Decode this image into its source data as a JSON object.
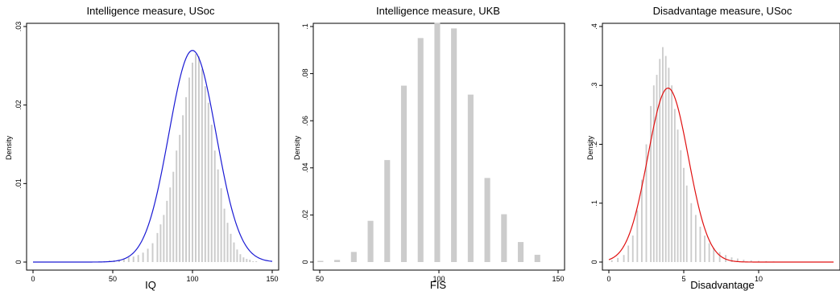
{
  "chart_data": [
    {
      "type": "bar",
      "title": "Intelligence measure, USoc",
      "xlabel": "IQ",
      "ylabel": "Density",
      "xlim": [
        0,
        150
      ],
      "ylim": [
        0,
        0.03
      ],
      "xticks": [
        {
          "v": 0,
          "label": "0"
        },
        {
          "v": 50,
          "label": "50"
        },
        {
          "v": 100,
          "label": "100"
        },
        {
          "v": 150,
          "label": "150"
        }
      ],
      "yticks": [
        {
          "v": 0,
          "label": "0"
        },
        {
          "v": 0.01,
          "label": ".01"
        },
        {
          "v": 0.02,
          "label": ".02"
        },
        {
          "v": 0.03,
          "label": ".03"
        }
      ],
      "bin_width": 1,
      "histogram": {
        "x": [
          45,
          48,
          51,
          54,
          57,
          60,
          63,
          66,
          69,
          72,
          75,
          78,
          80,
          82,
          84,
          86,
          88,
          90,
          92,
          94,
          96,
          98,
          100,
          102,
          104,
          106,
          108,
          110,
          112,
          114,
          116,
          118,
          120,
          122,
          124,
          126,
          128,
          130,
          132,
          134,
          136,
          138,
          140
        ],
        "y": [
          0.0001,
          0.0002,
          0.0002,
          0.0003,
          0.0004,
          0.0006,
          0.0007,
          0.0009,
          0.0012,
          0.0017,
          0.0024,
          0.0037,
          0.0048,
          0.006,
          0.0078,
          0.0095,
          0.0115,
          0.0142,
          0.0162,
          0.0187,
          0.021,
          0.0235,
          0.0254,
          0.0265,
          0.0262,
          0.0246,
          0.0224,
          0.0203,
          0.0175,
          0.0142,
          0.0118,
          0.0094,
          0.0068,
          0.005,
          0.0036,
          0.0025,
          0.0016,
          0.001,
          0.0006,
          0.0004,
          0.0003,
          0.0001,
          0.0001
        ]
      },
      "series": [
        {
          "kind": "normal-density",
          "mean": 100,
          "sd": 14.8
        }
      ],
      "bar_color": "#cccccc",
      "curve_color": "#1a1ad4"
    },
    {
      "type": "bar",
      "title": "Intelligence measure, UKB",
      "xlabel": "FIS",
      "ylabel": "Density",
      "xlim": [
        50,
        150
      ],
      "ylim": [
        0,
        0.1
      ],
      "xticks": [
        {
          "v": 50,
          "label": "50"
        },
        {
          "v": 100,
          "label": "100"
        },
        {
          "v": 150,
          "label": "150"
        }
      ],
      "yticks": [
        {
          "v": 0,
          "label": "0"
        },
        {
          "v": 0.02,
          "label": ".02"
        },
        {
          "v": 0.04,
          "label": ".04"
        },
        {
          "v": 0.06,
          "label": ".06"
        },
        {
          "v": 0.08,
          "label": ".08"
        },
        {
          "v": 0.1,
          "label": ".1"
        }
      ],
      "bin_width": 2.4,
      "histogram": {
        "x": [
          50.3,
          57.3,
          64.3,
          71.3,
          78.3,
          85.3,
          92.3,
          99.3,
          106.3,
          113.3,
          120.3,
          127.3,
          134.3,
          141.3
        ],
        "y": [
          0.0005,
          0.0009,
          0.0043,
          0.0175,
          0.0433,
          0.0749,
          0.0951,
          0.1016,
          0.0992,
          0.0711,
          0.0357,
          0.0203,
          0.0085,
          0.0031
        ]
      },
      "bar_color": "#cccccc"
    },
    {
      "type": "bar",
      "title": "Disadvantage measure, USoc",
      "xlabel": "Disadvantage",
      "ylabel": "Density",
      "xlim": [
        0,
        15
      ],
      "ylim": [
        0,
        0.4
      ],
      "xticks": [
        {
          "v": 0,
          "label": "0"
        },
        {
          "v": 5,
          "label": "5"
        },
        {
          "v": 10,
          "label": "10"
        }
      ],
      "yticks": [
        {
          "v": 0,
          "label": "0"
        },
        {
          "v": 0.1,
          "label": ".1"
        },
        {
          "v": 0.2,
          "label": ".2"
        },
        {
          "v": 0.3,
          "label": ".3"
        },
        {
          "v": 0.4,
          "label": ".4"
        }
      ],
      "bin_width": 0.1,
      "histogram": {
        "x": [
          0.2,
          0.6,
          1.0,
          1.3,
          1.6,
          1.9,
          2.2,
          2.5,
          2.8,
          3.0,
          3.2,
          3.4,
          3.6,
          3.8,
          4.0,
          4.2,
          4.4,
          4.6,
          4.8,
          5.0,
          5.2,
          5.5,
          5.8,
          6.1,
          6.4,
          6.7,
          7.0,
          7.4,
          7.8,
          8.2,
          8.6,
          9.0,
          9.5,
          10.0,
          10.5,
          11.0
        ],
        "y": [
          0.003,
          0.007,
          0.012,
          0.028,
          0.045,
          0.088,
          0.14,
          0.2,
          0.265,
          0.3,
          0.318,
          0.345,
          0.365,
          0.35,
          0.33,
          0.3,
          0.26,
          0.225,
          0.19,
          0.16,
          0.13,
          0.1,
          0.08,
          0.06,
          0.045,
          0.032,
          0.024,
          0.017,
          0.012,
          0.008,
          0.006,
          0.004,
          0.003,
          0.002,
          0.0015,
          0.001
        ]
      },
      "series": [
        {
          "kind": "normal-density",
          "mean": 3.95,
          "sd": 1.35
        }
      ],
      "bar_color": "#cccccc",
      "curve_color": "#e01010"
    }
  ]
}
